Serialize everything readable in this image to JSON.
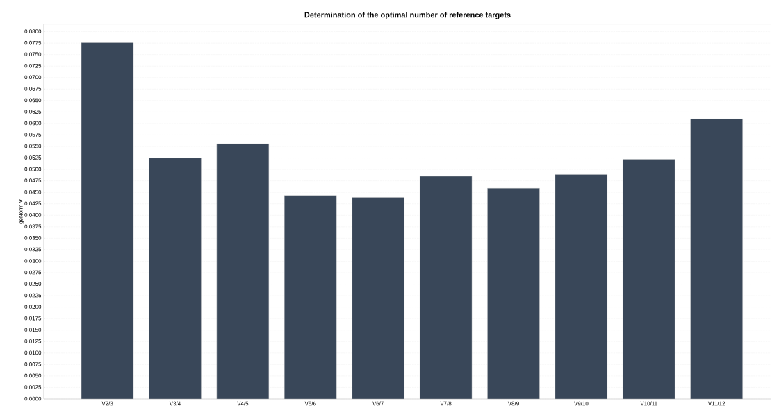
{
  "chart_data": {
    "type": "bar",
    "title": "Determination of the optimal number of reference targets",
    "ylabel": "geNorm V",
    "categories": [
      "V2/3",
      "V3/4",
      "V4/5",
      "V5/6",
      "V6/7",
      "V7/8",
      "V8/9",
      "V9/10",
      "V10/11",
      "V11/12"
    ],
    "values": [
      0.0776,
      0.0525,
      0.0556,
      0.0443,
      0.0439,
      0.0485,
      0.0459,
      0.0489,
      0.0522,
      0.061
    ],
    "color": "#394759",
    "grid": "y",
    "ylim": [
      0,
      0.0816
    ],
    "yticks": [
      {
        "value": 0,
        "label": "0,0000"
      },
      {
        "value": 0.0025,
        "label": "0,0025"
      },
      {
        "value": 0.005,
        "label": "0,0050"
      },
      {
        "value": 0.0075,
        "label": "0,0075"
      },
      {
        "value": 0.01,
        "label": "0,0100"
      },
      {
        "value": 0.0125,
        "label": "0,0125"
      },
      {
        "value": 0.015,
        "label": "0,0150"
      },
      {
        "value": 0.0175,
        "label": "0,0175"
      },
      {
        "value": 0.02,
        "label": "0,0200"
      },
      {
        "value": 0.0225,
        "label": "0,0225"
      },
      {
        "value": 0.025,
        "label": "0,0250"
      },
      {
        "value": 0.0275,
        "label": "0,0275"
      },
      {
        "value": 0.03,
        "label": "0,0300"
      },
      {
        "value": 0.0325,
        "label": "0,0325"
      },
      {
        "value": 0.035,
        "label": "0,0350"
      },
      {
        "value": 0.0375,
        "label": "0,0375"
      },
      {
        "value": 0.04,
        "label": "0,0400"
      },
      {
        "value": 0.0425,
        "label": "0,0425"
      },
      {
        "value": 0.045,
        "label": "0,0450"
      },
      {
        "value": 0.0475,
        "label": "0,0475"
      },
      {
        "value": 0.05,
        "label": "0,0500"
      },
      {
        "value": 0.0525,
        "label": "0,0525"
      },
      {
        "value": 0.055,
        "label": "0,0550"
      },
      {
        "value": 0.0575,
        "label": "0,0575"
      },
      {
        "value": 0.06,
        "label": "0,0600"
      },
      {
        "value": 0.0625,
        "label": "0,0625"
      },
      {
        "value": 0.065,
        "label": "0,0650"
      },
      {
        "value": 0.0675,
        "label": "0,0675"
      },
      {
        "value": 0.07,
        "label": "0,0700"
      },
      {
        "value": 0.0725,
        "label": "0,0725"
      },
      {
        "value": 0.075,
        "label": "0,0750"
      },
      {
        "value": 0.0775,
        "label": "0,0775"
      },
      {
        "value": 0.08,
        "label": "0,0800"
      }
    ]
  }
}
